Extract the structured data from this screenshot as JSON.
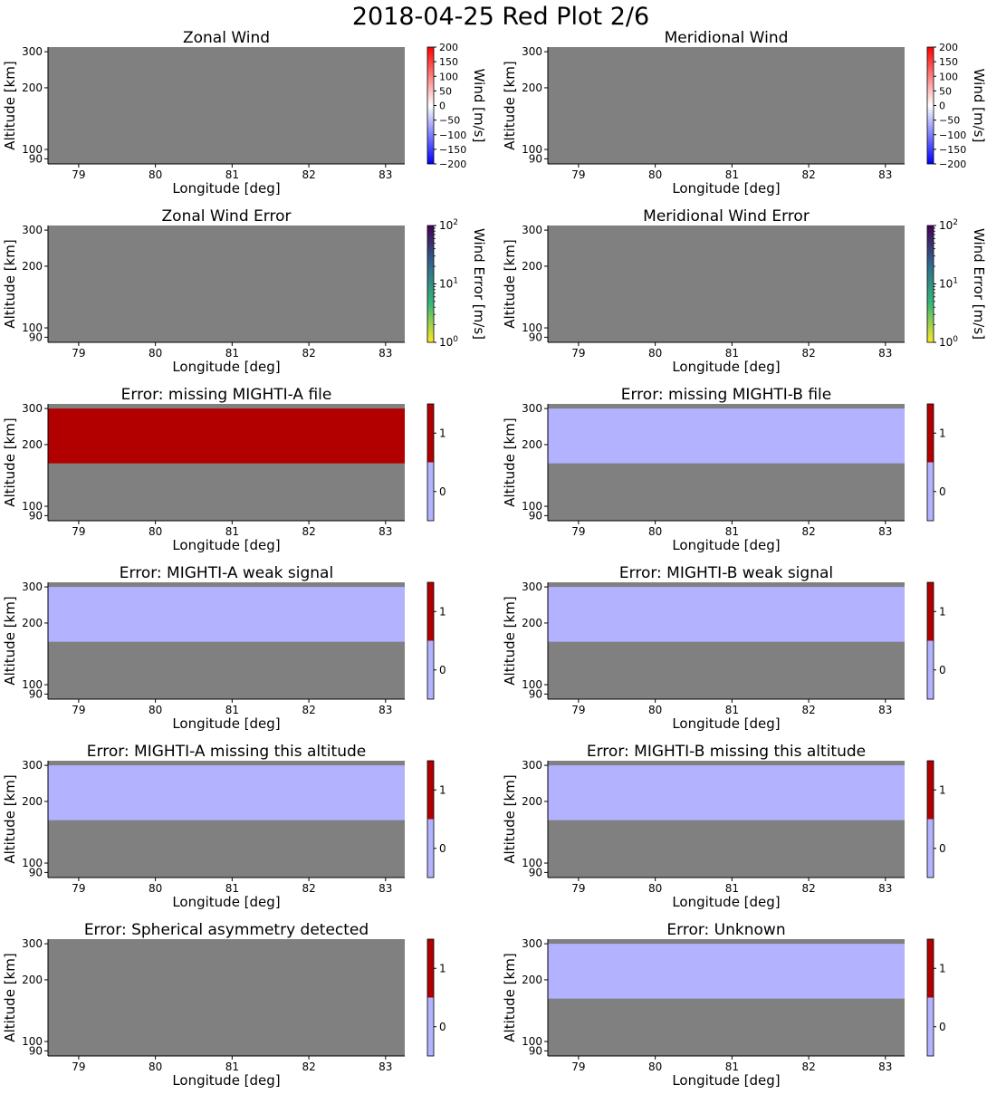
{
  "figure_title": "2018-04-25 Red Plot 2/6",
  "colors": {
    "nodata": "#808080",
    "flag_0": "#b2b2ff",
    "flag_1": "#b20000",
    "axis": "#000000",
    "wind_cmap": [
      "#0000ff",
      "#ffffff",
      "#ff0000"
    ],
    "error_cmap": [
      "#fde725",
      "#35b779",
      "#31688e",
      "#440154"
    ]
  },
  "chart_data": [
    {
      "type": "heatmap",
      "title": "Zonal Wind",
      "xlabel": "Longitude [deg]",
      "ylabel": "Altitude [km]",
      "xlim": [
        78.6,
        83.25
      ],
      "xticks": [
        79,
        80,
        81,
        82,
        83
      ],
      "ylim": [
        85,
        316
      ],
      "yticks": [
        90,
        100,
        200,
        300
      ],
      "y_scale": "log",
      "grid": false,
      "colorbar": {
        "label": "Wind [m/s]",
        "scale": "linear",
        "range": [
          -200,
          200
        ],
        "ticks": [
          "200",
          "150",
          "100",
          "50",
          "0",
          "−50",
          "−100",
          "−150",
          "−200"
        ],
        "colormap": "bwr"
      },
      "regions": []
    },
    {
      "type": "heatmap",
      "title": "Meridional Wind",
      "xlabel": "Longitude [deg]",
      "ylabel": "Altitude [km]",
      "xlim": [
        78.6,
        83.25
      ],
      "xticks": [
        79,
        80,
        81,
        82,
        83
      ],
      "ylim": [
        85,
        316
      ],
      "yticks": [
        90,
        100,
        200,
        300
      ],
      "y_scale": "log",
      "grid": false,
      "colorbar": {
        "label": "Wind [m/s]",
        "scale": "linear",
        "range": [
          -200,
          200
        ],
        "ticks": [
          "200",
          "150",
          "100",
          "50",
          "0",
          "−50",
          "−100",
          "−150",
          "−200"
        ],
        "colormap": "bwr"
      },
      "regions": []
    },
    {
      "type": "heatmap",
      "title": "Zonal Wind Error",
      "xlabel": "Longitude [deg]",
      "ylabel": "Altitude [km]",
      "xlim": [
        78.6,
        83.25
      ],
      "xticks": [
        79,
        80,
        81,
        82,
        83
      ],
      "ylim": [
        85,
        316
      ],
      "yticks": [
        90,
        100,
        200,
        300
      ],
      "y_scale": "log",
      "grid": false,
      "colorbar": {
        "label": "Wind Error [m/s]",
        "scale": "log",
        "range": [
          1,
          100
        ],
        "ticks": [
          "10^2",
          "10^1",
          "10^0"
        ],
        "colormap": "viridis_r"
      },
      "regions": []
    },
    {
      "type": "heatmap",
      "title": "Meridional Wind Error",
      "xlabel": "Longitude [deg]",
      "ylabel": "Altitude [km]",
      "xlim": [
        78.6,
        83.25
      ],
      "xticks": [
        79,
        80,
        81,
        82,
        83
      ],
      "ylim": [
        85,
        316
      ],
      "yticks": [
        90,
        100,
        200,
        300
      ],
      "y_scale": "log",
      "grid": false,
      "colorbar": {
        "label": "Wind Error [m/s]",
        "scale": "log",
        "range": [
          1,
          100
        ],
        "ticks": [
          "10^2",
          "10^1",
          "10^0"
        ],
        "colormap": "viridis_r"
      },
      "regions": []
    },
    {
      "type": "heatmap",
      "title": "Error: missing MIGHTI-A file",
      "xlabel": "Longitude [deg]",
      "ylabel": "Altitude [km]",
      "xlim": [
        78.6,
        83.25
      ],
      "xticks": [
        79,
        80,
        81,
        82,
        83
      ],
      "ylim": [
        85,
        316
      ],
      "yticks": [
        90,
        100,
        200,
        300
      ],
      "y_scale": "log",
      "grid": false,
      "colorbar": {
        "label": "",
        "scale": "discrete",
        "range": [
          -0.5,
          1.5
        ],
        "ticks": [
          "1",
          "0"
        ],
        "colormap": "two-level"
      },
      "regions": [
        {
          "alt_range": [
            162,
            300
          ],
          "value": 1
        }
      ]
    },
    {
      "type": "heatmap",
      "title": "Error: missing MIGHTI-B file",
      "xlabel": "Longitude [deg]",
      "ylabel": "Altitude [km]",
      "xlim": [
        78.6,
        83.25
      ],
      "xticks": [
        79,
        80,
        81,
        82,
        83
      ],
      "ylim": [
        85,
        316
      ],
      "yticks": [
        90,
        100,
        200,
        300
      ],
      "y_scale": "log",
      "grid": false,
      "colorbar": {
        "label": "",
        "scale": "discrete",
        "range": [
          -0.5,
          1.5
        ],
        "ticks": [
          "1",
          "0"
        ],
        "colormap": "two-level"
      },
      "regions": [
        {
          "alt_range": [
            162,
            300
          ],
          "value": 0
        }
      ]
    },
    {
      "type": "heatmap",
      "title": "Error: MIGHTI-A weak signal",
      "xlabel": "Longitude [deg]",
      "ylabel": "Altitude [km]",
      "xlim": [
        78.6,
        83.25
      ],
      "xticks": [
        79,
        80,
        81,
        82,
        83
      ],
      "ylim": [
        85,
        316
      ],
      "yticks": [
        90,
        100,
        200,
        300
      ],
      "y_scale": "log",
      "grid": false,
      "colorbar": {
        "label": "",
        "scale": "discrete",
        "range": [
          -0.5,
          1.5
        ],
        "ticks": [
          "1",
          "0"
        ],
        "colormap": "two-level"
      },
      "regions": [
        {
          "alt_range": [
            162,
            300
          ],
          "value": 0
        }
      ]
    },
    {
      "type": "heatmap",
      "title": "Error: MIGHTI-B weak signal",
      "xlabel": "Longitude [deg]",
      "ylabel": "Altitude [km]",
      "xlim": [
        78.6,
        83.25
      ],
      "xticks": [
        79,
        80,
        81,
        82,
        83
      ],
      "ylim": [
        85,
        316
      ],
      "yticks": [
        90,
        100,
        200,
        300
      ],
      "y_scale": "log",
      "grid": false,
      "colorbar": {
        "label": "",
        "scale": "discrete",
        "range": [
          -0.5,
          1.5
        ],
        "ticks": [
          "1",
          "0"
        ],
        "colormap": "two-level"
      },
      "regions": [
        {
          "alt_range": [
            162,
            300
          ],
          "value": 0
        }
      ]
    },
    {
      "type": "heatmap",
      "title": "Error: MIGHTI-A missing this altitude",
      "xlabel": "Longitude [deg]",
      "ylabel": "Altitude [km]",
      "xlim": [
        78.6,
        83.25
      ],
      "xticks": [
        79,
        80,
        81,
        82,
        83
      ],
      "ylim": [
        85,
        316
      ],
      "yticks": [
        90,
        100,
        200,
        300
      ],
      "y_scale": "log",
      "grid": false,
      "colorbar": {
        "label": "",
        "scale": "discrete",
        "range": [
          -0.5,
          1.5
        ],
        "ticks": [
          "1",
          "0"
        ],
        "colormap": "two-level"
      },
      "regions": [
        {
          "alt_range": [
            162,
            300
          ],
          "value": 0
        }
      ]
    },
    {
      "type": "heatmap",
      "title": "Error: MIGHTI-B missing this altitude",
      "xlabel": "Longitude [deg]",
      "ylabel": "Altitude [km]",
      "xlim": [
        78.6,
        83.25
      ],
      "xticks": [
        79,
        80,
        81,
        82,
        83
      ],
      "ylim": [
        85,
        316
      ],
      "yticks": [
        90,
        100,
        200,
        300
      ],
      "y_scale": "log",
      "grid": false,
      "colorbar": {
        "label": "",
        "scale": "discrete",
        "range": [
          -0.5,
          1.5
        ],
        "ticks": [
          "1",
          "0"
        ],
        "colormap": "two-level"
      },
      "regions": [
        {
          "alt_range": [
            162,
            300
          ],
          "value": 0
        }
      ]
    },
    {
      "type": "heatmap",
      "title": "Error: Spherical asymmetry detected",
      "xlabel": "Longitude [deg]",
      "ylabel": "Altitude [km]",
      "xlim": [
        78.6,
        83.25
      ],
      "xticks": [
        79,
        80,
        81,
        82,
        83
      ],
      "ylim": [
        85,
        316
      ],
      "yticks": [
        90,
        100,
        200,
        300
      ],
      "y_scale": "log",
      "grid": false,
      "colorbar": {
        "label": "",
        "scale": "discrete",
        "range": [
          -0.5,
          1.5
        ],
        "ticks": [
          "1",
          "0"
        ],
        "colormap": "two-level"
      },
      "regions": []
    },
    {
      "type": "heatmap",
      "title": "Error: Unknown",
      "xlabel": "Longitude [deg]",
      "ylabel": "Altitude [km]",
      "xlim": [
        78.6,
        83.25
      ],
      "xticks": [
        79,
        80,
        81,
        82,
        83
      ],
      "ylim": [
        85,
        316
      ],
      "yticks": [
        90,
        100,
        200,
        300
      ],
      "y_scale": "log",
      "grid": false,
      "colorbar": {
        "label": "",
        "scale": "discrete",
        "range": [
          -0.5,
          1.5
        ],
        "ticks": [
          "1",
          "0"
        ],
        "colormap": "two-level"
      },
      "regions": [
        {
          "alt_range": [
            162,
            300
          ],
          "value": 0
        }
      ]
    }
  ]
}
